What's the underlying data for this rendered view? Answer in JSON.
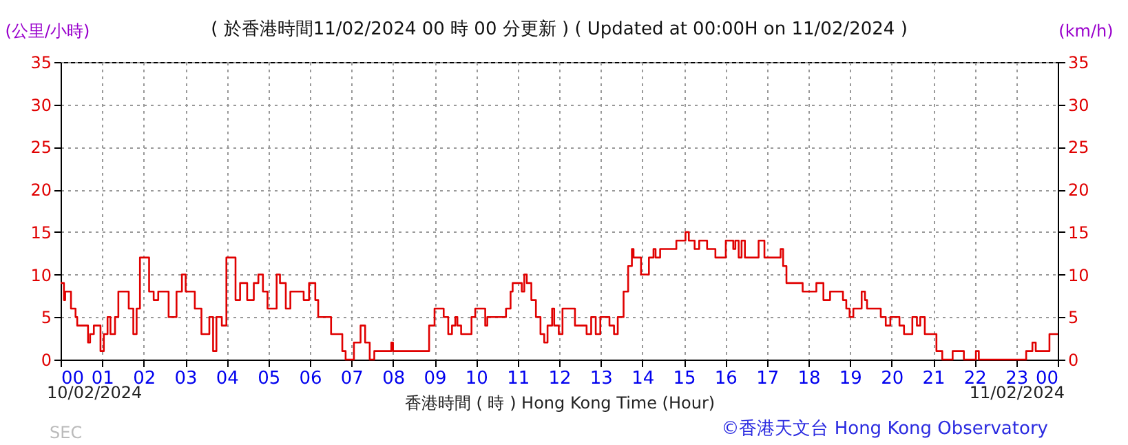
{
  "chart_data": {
    "type": "step",
    "title": "( 於香港時間11/02/2024 00 時 00 分更新 ) ( Updated at 00:00H on 11/02/2024 )",
    "ylabel": "(公里/小時)",
    "y2label": "(km/h)",
    "xlabel": "香港時間 ( 時 ) Hong Kong Time (Hour)",
    "annotations": [
      "10/02/2024",
      "11/02/2024",
      "©香港天文台 Hong Kong Observatory",
      "SEC"
    ],
    "xlim": [
      0,
      24
    ],
    "xticks": [
      {
        "value": 0,
        "label": "00"
      },
      {
        "value": 1,
        "label": "01"
      },
      {
        "value": 2,
        "label": "02"
      },
      {
        "value": 3,
        "label": "03"
      },
      {
        "value": 4,
        "label": "04"
      },
      {
        "value": 5,
        "label": "05"
      },
      {
        "value": 6,
        "label": "06"
      },
      {
        "value": 7,
        "label": "07"
      },
      {
        "value": 8,
        "label": "08"
      },
      {
        "value": 9,
        "label": "09"
      },
      10,
      11,
      12,
      13,
      14,
      15,
      16,
      17,
      18,
      19,
      20,
      21,
      22,
      23,
      {
        "value": 24,
        "label": "00"
      }
    ],
    "ylim": [
      0,
      35
    ],
    "yticks": [
      0,
      5,
      10,
      15,
      20,
      25,
      30,
      35
    ],
    "y2lim": [
      0,
      35
    ],
    "y2ticks": [
      0,
      5,
      10,
      15,
      20,
      25,
      30,
      35
    ],
    "grid": true,
    "legend": false,
    "marker": "none",
    "line_style": "solid",
    "series": [
      {
        "color": "#e00000",
        "x": [
          0.0,
          0.08,
          0.11,
          0.22,
          0.25,
          0.36,
          0.4,
          0.6,
          0.66,
          0.71,
          0.8,
          0.91,
          0.96,
          1.04,
          1.13,
          1.2,
          1.31,
          1.39,
          1.59,
          1.64,
          1.75,
          1.83,
          1.91,
          2.05,
          2.13,
          2.24,
          2.35,
          2.48,
          2.6,
          2.68,
          2.79,
          2.92,
          3.01,
          3.12,
          3.23,
          3.39,
          3.5,
          3.58,
          3.67,
          3.75,
          3.88,
          3.99,
          4.08,
          4.21,
          4.32,
          4.43,
          4.49,
          4.56,
          4.65,
          4.76,
          4.87,
          4.98,
          5.09,
          5.2,
          5.28,
          5.42,
          5.53,
          5.8,
          5.85,
          5.98,
          6.13,
          6.2,
          6.4,
          6.51,
          6.67,
          6.78,
          6.86,
          6.95,
          7.06,
          7.22,
          7.33,
          7.44,
          7.55,
          7.93,
          7.96,
          8.0,
          8.83,
          8.87,
          9.0,
          9.17,
          9.22,
          9.33,
          9.42,
          9.5,
          9.55,
          9.64,
          9.75,
          9.89,
          9.98,
          10.11,
          10.22,
          10.27,
          10.66,
          10.72,
          10.83,
          10.88,
          11.05,
          11.1,
          11.16,
          11.22,
          11.33,
          11.44,
          11.55,
          11.64,
          11.72,
          11.83,
          11.88,
          11.99,
          12.08,
          12.27,
          12.38,
          12.55,
          12.66,
          12.77,
          12.88,
          12.99,
          13.1,
          13.21,
          13.32,
          13.41,
          13.55,
          13.66,
          13.75,
          13.79,
          13.88,
          13.97,
          14.1,
          14.16,
          14.27,
          14.32,
          14.43,
          14.76,
          14.82,
          14.99,
          15.04,
          15.12,
          15.26,
          15.37,
          15.49,
          15.56,
          15.65,
          15.76,
          15.87,
          16.01,
          16.19,
          16.24,
          16.32,
          16.39,
          16.47,
          16.74,
          16.8,
          16.88,
          16.94,
          17.3,
          17.33,
          17.39,
          17.47,
          17.8,
          17.86,
          18.13,
          18.19,
          18.3,
          18.36,
          18.47,
          18.52,
          18.8,
          18.83,
          18.91,
          18.99,
          19.08,
          19.19,
          19.28,
          19.36,
          19.41,
          19.63,
          19.74,
          19.86,
          19.97,
          20.13,
          20.19,
          20.3,
          20.41,
          20.5,
          20.61,
          20.69,
          20.8,
          20.97,
          21.08,
          21.22,
          21.41,
          21.47,
          21.69,
          21.74,
          21.99,
          22.03,
          22.1,
          23.19,
          23.24,
          23.39,
          23.47,
          23.69,
          23.8,
          24.0
        ],
        "values": [
          9,
          7,
          8,
          8,
          6,
          5,
          4,
          4,
          2,
          3,
          4,
          4,
          1,
          3,
          5,
          3,
          5,
          8,
          8,
          6,
          3,
          6,
          12,
          12,
          8,
          7,
          8,
          8,
          5,
          5,
          8,
          10,
          8,
          8,
          6,
          3,
          3,
          5,
          1,
          5,
          4,
          12,
          12,
          7,
          9,
          9,
          7,
          7,
          9,
          10,
          8,
          6,
          6,
          10,
          9,
          6,
          8,
          8,
          7,
          9,
          7,
          5,
          5,
          3,
          3,
          1,
          0,
          0,
          2,
          4,
          2,
          0,
          1,
          1,
          2,
          1,
          1,
          4,
          6,
          6,
          5,
          3,
          4,
          5,
          4,
          3,
          3,
          5,
          6,
          6,
          4,
          5,
          5,
          6,
          8,
          9,
          9,
          8,
          10,
          9,
          7,
          5,
          3,
          2,
          4,
          6,
          4,
          3,
          6,
          6,
          4,
          4,
          3,
          5,
          3,
          5,
          5,
          4,
          3,
          5,
          8,
          11,
          13,
          12,
          12,
          10,
          10,
          12,
          13,
          12,
          13,
          13,
          14,
          14,
          15,
          14,
          13,
          14,
          14,
          13,
          13,
          12,
          12,
          14,
          13,
          14,
          12,
          14,
          12,
          12,
          14,
          14,
          12,
          12,
          13,
          11,
          9,
          9,
          8,
          8,
          9,
          9,
          7,
          7,
          8,
          8,
          7,
          6,
          5,
          6,
          6,
          8,
          7,
          6,
          6,
          5,
          4,
          5,
          5,
          4,
          3,
          3,
          5,
          4,
          5,
          3,
          3,
          1,
          0,
          0,
          1,
          1,
          0,
          0,
          1,
          0,
          0,
          1,
          2,
          1,
          1,
          3,
          3
        ]
      }
    ]
  }
}
